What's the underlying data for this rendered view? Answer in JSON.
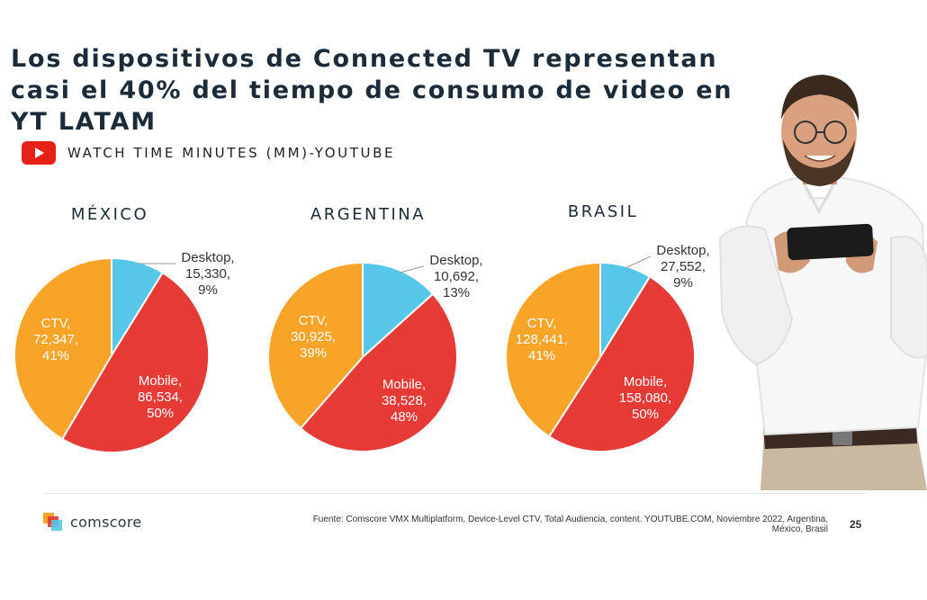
{
  "title": "Los dispositivos de Connected TV representan casi el 40% del tiempo de consumo de video en YT LATAM",
  "metric_label": "WATCH TIME MINUTES (MM)-YOUTUBE",
  "colors": {
    "Desktop": "#56c7e8",
    "Mobile": "#e53a35",
    "CTV": "#f7a429"
  },
  "chart_data": [
    {
      "type": "pie",
      "title": "MÉXICO",
      "slices": [
        {
          "name": "Desktop",
          "value": 15330,
          "value_label": "15,330",
          "percent": "9%"
        },
        {
          "name": "Mobile",
          "value": 86534,
          "value_label": "86,534",
          "percent": "50%"
        },
        {
          "name": "CTV",
          "value": 72347,
          "value_label": "72,347",
          "percent": "41%"
        }
      ]
    },
    {
      "type": "pie",
      "title": "ARGENTINA",
      "slices": [
        {
          "name": "Desktop",
          "value": 10692,
          "value_label": "10,692",
          "percent": "13%"
        },
        {
          "name": "Mobile",
          "value": 38528,
          "value_label": "38,528",
          "percent": "48%"
        },
        {
          "name": "CTV",
          "value": 30925,
          "value_label": "30,925",
          "percent": "39%"
        }
      ]
    },
    {
      "type": "pie",
      "title": "BRASIL",
      "slices": [
        {
          "name": "Desktop",
          "value": 27552,
          "value_label": "27,552",
          "percent": "9%"
        },
        {
          "name": "Mobile",
          "value": 158080,
          "value_label": "158,080",
          "percent": "50%"
        },
        {
          "name": "CTV",
          "value": 128441,
          "value_label": "128,441",
          "percent": "41%"
        }
      ]
    }
  ],
  "brand": "comscore",
  "source": "Fuente: Comscore VMX Multiplatform, Device-Level CTV, Total Audiencia, content. YOUTUBE.COM, Noviembre 2022, Argentina, México, Brasil",
  "page_number": "25"
}
